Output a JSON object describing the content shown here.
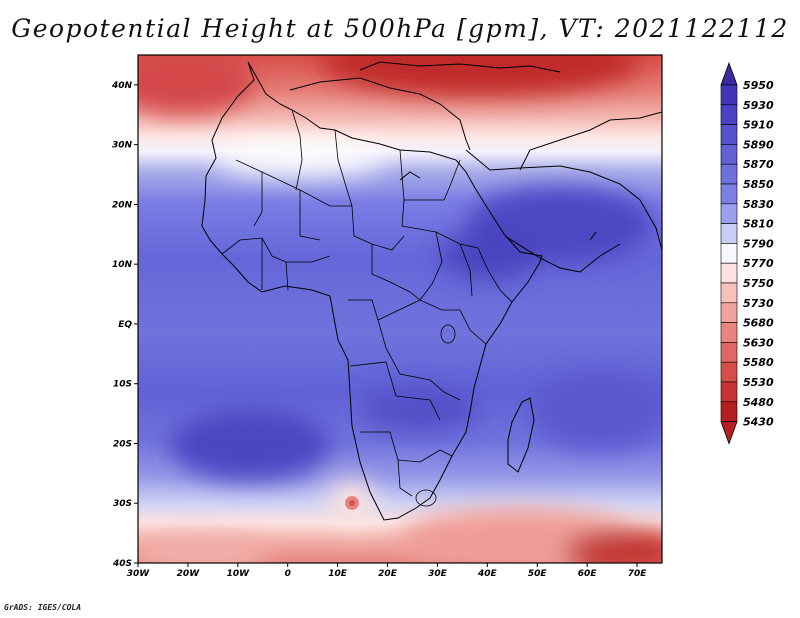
{
  "title": "Geopotential Height at 500hPa [gpm], VT: 2021122112",
  "credit": "GrADS: IGES/COLA",
  "map": {
    "lon_range": [
      -30,
      75
    ],
    "lat_range": [
      -40,
      45
    ],
    "x_ticks": [
      {
        "value": -30,
        "label": "30W"
      },
      {
        "value": -20,
        "label": "20W"
      },
      {
        "value": -10,
        "label": "10W"
      },
      {
        "value": 0,
        "label": "0"
      },
      {
        "value": 10,
        "label": "10E"
      },
      {
        "value": 20,
        "label": "20E"
      },
      {
        "value": 30,
        "label": "30E"
      },
      {
        "value": 40,
        "label": "40E"
      },
      {
        "value": 50,
        "label": "50E"
      },
      {
        "value": 60,
        "label": "60E"
      },
      {
        "value": 70,
        "label": "70E"
      }
    ],
    "y_ticks": [
      {
        "value": 40,
        "label": "40N"
      },
      {
        "value": 30,
        "label": "30N"
      },
      {
        "value": 20,
        "label": "20N"
      },
      {
        "value": 10,
        "label": "10N"
      },
      {
        "value": 0,
        "label": "EQ"
      },
      {
        "value": -10,
        "label": "10S"
      },
      {
        "value": -20,
        "label": "20S"
      },
      {
        "value": -30,
        "label": "30S"
      },
      {
        "value": -40,
        "label": "40S"
      }
    ]
  },
  "colorbar": {
    "labels": [
      "5950",
      "5930",
      "5910",
      "5890",
      "5870",
      "5850",
      "5830",
      "5810",
      "5790",
      "5770",
      "5750",
      "5730",
      "5680",
      "5630",
      "5580",
      "5530",
      "5480",
      "5430"
    ],
    "colors": [
      "#3c2a9e",
      "#4336b6",
      "#4b43c4",
      "#5552cc",
      "#6262d6",
      "#6e70de",
      "#7c7fe4",
      "#9aa0ec",
      "#c9ccf4",
      "#f7f7ff",
      "#fde2e0",
      "#f8c0bb",
      "#f0a29c",
      "#e8857e",
      "#df6962",
      "#d54e49",
      "#c93432",
      "#b51f20"
    ]
  }
}
